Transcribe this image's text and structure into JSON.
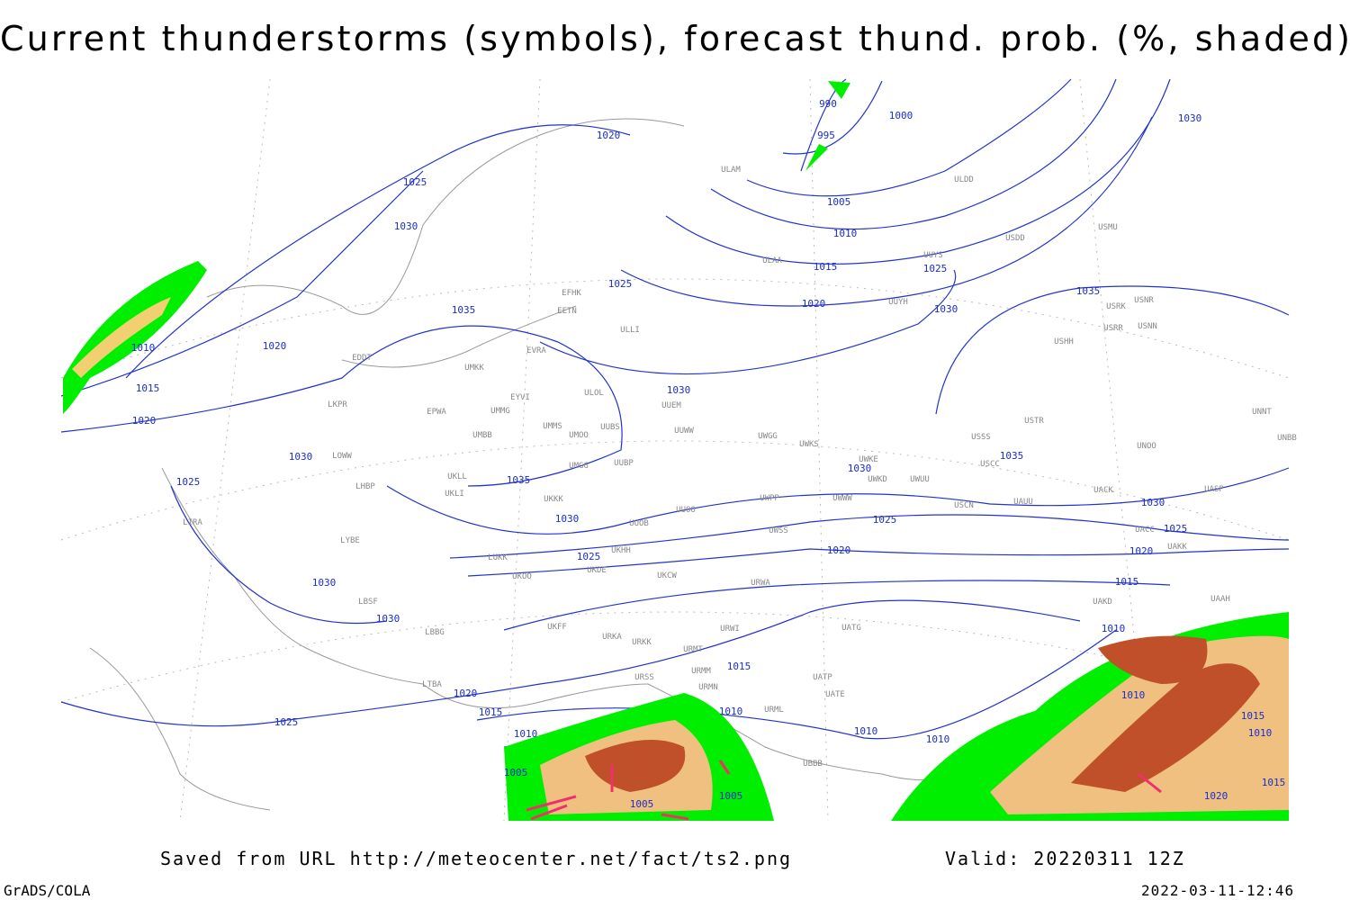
{
  "header": {
    "title": "Current thunderstorms (symbols), forecast thund. prob. (%, shaded)"
  },
  "footer": {
    "source": "Saved from URL http://meteocenter.net/fact/ts2.png",
    "valid": "Valid: 20220311 12Z",
    "software": "GrADS/COLA",
    "timestamp": "2022-03-11-12:46"
  },
  "isobar_labels": [
    "990",
    "995",
    "1000",
    "1005",
    "1010",
    "1015",
    "1020",
    "1025",
    "1030",
    "1035",
    "1030",
    "1020",
    "1025",
    "1030",
    "1025",
    "1035",
    "1020",
    "1010",
    "1015",
    "1020",
    "1030",
    "1030",
    "1035",
    "1025",
    "1030",
    "1025",
    "1030",
    "1030",
    "1030",
    "1035",
    "1030",
    "1025",
    "1025",
    "1020",
    "1020",
    "1015",
    "1015",
    "1020",
    "1015",
    "1025",
    "1010",
    "1010",
    "1010",
    "1010",
    "1010",
    "1015",
    "1010",
    "1010",
    "1005",
    "1005",
    "1005",
    "1015",
    "1020"
  ],
  "station_labels": [
    "ULLI",
    "EFHK",
    "EETN",
    "EVRA",
    "ULOL",
    "UMKK",
    "EYVI",
    "EPWA",
    "UMMG",
    "UMMS",
    "UMOO",
    "UUBS",
    "UMBB",
    "UUEM",
    "UUWW",
    "UWGG",
    "UWKS",
    "EDDT",
    "LKPR",
    "LOWW",
    "LHBP",
    "UKLL",
    "UKLI",
    "UMGG",
    "UUBP",
    "UKKK",
    "UUOO",
    "UUOB",
    "UWPP",
    "UWWW",
    "UWKE",
    "UWKD",
    "UWUU",
    "LIRA",
    "LYBE",
    "LUKK",
    "UKHH",
    "UKOO",
    "UKDE",
    "UKCW",
    "UWSS",
    "URWA",
    "URWI",
    "UUYS",
    "UUYH",
    "ULAA",
    "ULAM",
    "ULDD",
    "USDD",
    "USMU",
    "USRK",
    "USRR",
    "USNN",
    "USNR",
    "USHH",
    "USSS",
    "USTR",
    "USCC",
    "UNOO",
    "UNNT",
    "UNBB",
    "USCN",
    "UAUU",
    "UACK",
    "UASP",
    "UACC",
    "UAKK",
    "UAKD",
    "UAAH",
    "UATG",
    "UATP",
    "UATE",
    "URMT",
    "URMM",
    "URMN",
    "URML",
    "URKK",
    "URKA",
    "URSS",
    "UKFF",
    "LBBG",
    "LBSF",
    "LTBA",
    "UBBB"
  ]
}
